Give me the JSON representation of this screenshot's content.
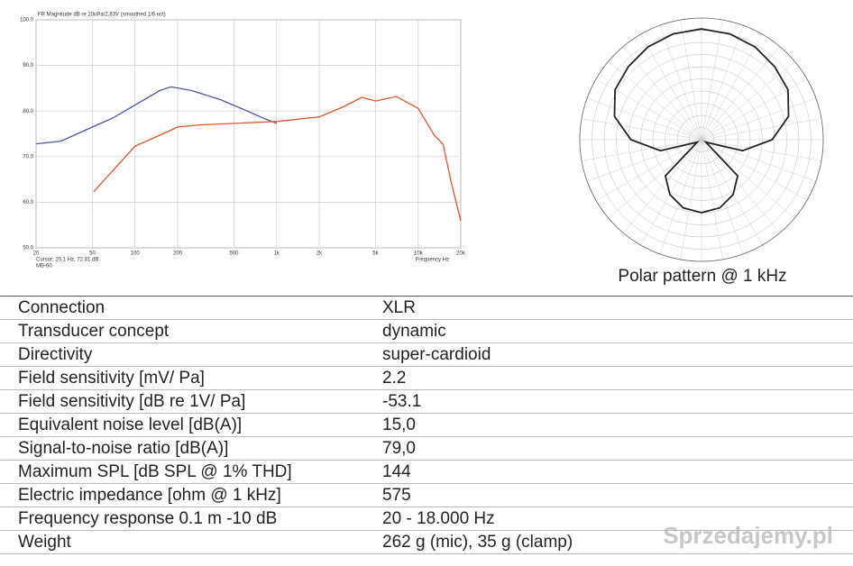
{
  "chart_data": [
    {
      "type": "line",
      "title": "FR Magnitude dB re 20uPa/2.83V (smoothed 1/6 oct)",
      "xlabel": "Frequency Hz",
      "cursor": "Cursor: 20.1 Hz, 72.81 dB",
      "label": "MB-60",
      "log_x": true,
      "grid": true,
      "xlim": [
        20,
        20000
      ],
      "xticks": [
        20,
        50,
        100,
        200,
        500,
        {
          "value": 1000,
          "label": "1k"
        },
        {
          "value": 2000,
          "label": "2k"
        },
        {
          "value": 5000,
          "label": "5k"
        },
        {
          "value": 10000,
          "label": "10k"
        },
        {
          "value": 20000,
          "label": "20k"
        }
      ],
      "ylim": [
        50,
        100
      ],
      "yticks": [
        {
          "value": 50,
          "label": "50.0"
        },
        {
          "value": 60,
          "label": "60.0"
        },
        {
          "value": 70,
          "label": "70.0"
        },
        {
          "value": 80,
          "label": "80.0"
        },
        {
          "value": 90,
          "label": "90.0"
        },
        {
          "value": 100,
          "label": "100.0"
        }
      ],
      "series": [
        {
          "color": "#4a55a8",
          "x": [
            20,
            30,
            50,
            70,
            100,
            150,
            180,
            250,
            400,
            600,
            800,
            1000
          ],
          "values": [
            72.8,
            73.4,
            76.5,
            78.5,
            81.3,
            84.5,
            85.3,
            84.5,
            82.5,
            80.2,
            78.5,
            77.3
          ]
        },
        {
          "color": "#e0552a",
          "x": [
            51,
            70,
            100,
            150,
            200,
            300,
            500,
            1000,
            2000,
            3000,
            4000,
            5000,
            7000,
            10000,
            13000,
            15000,
            17000,
            20000
          ],
          "values": [
            62.3,
            67,
            72.3,
            74.7,
            76.5,
            77,
            77.3,
            77.7,
            78.7,
            81,
            83,
            82.2,
            83.2,
            80.6,
            74.7,
            72.7,
            64.8,
            55.9
          ]
        }
      ]
    },
    {
      "type": "polar",
      "caption": "Polar pattern @ 1 kHz",
      "color": "#222222",
      "rlim": [
        0,
        1
      ],
      "theta": [
        0,
        15,
        30,
        45,
        60,
        75,
        90,
        105,
        120,
        135,
        150,
        165,
        180,
        195,
        210,
        225,
        240,
        255,
        270,
        285,
        300,
        315,
        330,
        345
      ],
      "values": [
        0.91,
        0.9,
        0.88,
        0.85,
        0.82,
        0.74,
        0.58,
        0.35,
        0.04,
        0.42,
        0.52,
        0.58,
        0.6,
        0.58,
        0.52,
        0.42,
        0.04,
        0.35,
        0.58,
        0.74,
        0.82,
        0.85,
        0.88,
        0.9
      ]
    }
  ],
  "table": {
    "rows": [
      [
        "Connection",
        "XLR"
      ],
      [
        "Transducer concept",
        "dynamic"
      ],
      [
        "Directivity",
        "super-cardioid"
      ],
      [
        "Field sensitivity [mV/ Pa]",
        "2.2"
      ],
      [
        "Field sensitivity [dB re 1V/ Pa]",
        "-53.1"
      ],
      [
        "Equivalent noise level [dB(A)]",
        "15,0"
      ],
      [
        "Signal-to-noise ratio [dB(A)]",
        "79,0"
      ],
      [
        "Maximum SPL [dB SPL @ 1% THD]",
        "144"
      ],
      [
        "Electric impedance [ohm @ 1 kHz]",
        "575"
      ],
      [
        "Frequency response 0.1 m -10 dB",
        "20 - 18.000 Hz"
      ],
      [
        "Weight",
        "262 g (mic), 35 g (clamp)"
      ]
    ]
  },
  "watermark": "Sprzedajemy.pl"
}
